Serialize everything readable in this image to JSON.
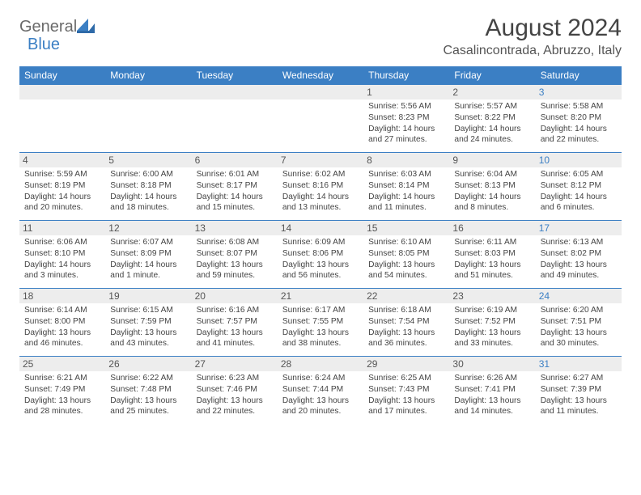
{
  "brand": {
    "left": "General",
    "right": "Blue"
  },
  "title": "August 2024",
  "location": "Casalincontrada, Abruzzo, Italy",
  "colors": {
    "header_bg": "#3b7fc4",
    "header_text": "#ffffff",
    "daynum_bg": "#ededed",
    "rule": "#3b7fc4",
    "body_text": "#444444",
    "saturday_num": "#3b7fc4"
  },
  "typography": {
    "title_fontsize": 30,
    "location_fontsize": 16,
    "header_fontsize": 12,
    "daynum_fontsize": 12,
    "cell_fontsize": 10.2
  },
  "day_headers": [
    "Sunday",
    "Monday",
    "Tuesday",
    "Wednesday",
    "Thursday",
    "Friday",
    "Saturday"
  ],
  "weeks": [
    [
      {
        "num": "",
        "lines": []
      },
      {
        "num": "",
        "lines": []
      },
      {
        "num": "",
        "lines": []
      },
      {
        "num": "",
        "lines": []
      },
      {
        "num": "1",
        "lines": [
          "Sunrise: 5:56 AM",
          "Sunset: 8:23 PM",
          "Daylight: 14 hours and 27 minutes."
        ]
      },
      {
        "num": "2",
        "lines": [
          "Sunrise: 5:57 AM",
          "Sunset: 8:22 PM",
          "Daylight: 14 hours and 24 minutes."
        ]
      },
      {
        "num": "3",
        "lines": [
          "Sunrise: 5:58 AM",
          "Sunset: 8:20 PM",
          "Daylight: 14 hours and 22 minutes."
        ]
      }
    ],
    [
      {
        "num": "4",
        "lines": [
          "Sunrise: 5:59 AM",
          "Sunset: 8:19 PM",
          "Daylight: 14 hours and 20 minutes."
        ]
      },
      {
        "num": "5",
        "lines": [
          "Sunrise: 6:00 AM",
          "Sunset: 8:18 PM",
          "Daylight: 14 hours and 18 minutes."
        ]
      },
      {
        "num": "6",
        "lines": [
          "Sunrise: 6:01 AM",
          "Sunset: 8:17 PM",
          "Daylight: 14 hours and 15 minutes."
        ]
      },
      {
        "num": "7",
        "lines": [
          "Sunrise: 6:02 AM",
          "Sunset: 8:16 PM",
          "Daylight: 14 hours and 13 minutes."
        ]
      },
      {
        "num": "8",
        "lines": [
          "Sunrise: 6:03 AM",
          "Sunset: 8:14 PM",
          "Daylight: 14 hours and 11 minutes."
        ]
      },
      {
        "num": "9",
        "lines": [
          "Sunrise: 6:04 AM",
          "Sunset: 8:13 PM",
          "Daylight: 14 hours and 8 minutes."
        ]
      },
      {
        "num": "10",
        "lines": [
          "Sunrise: 6:05 AM",
          "Sunset: 8:12 PM",
          "Daylight: 14 hours and 6 minutes."
        ]
      }
    ],
    [
      {
        "num": "11",
        "lines": [
          "Sunrise: 6:06 AM",
          "Sunset: 8:10 PM",
          "Daylight: 14 hours and 3 minutes."
        ]
      },
      {
        "num": "12",
        "lines": [
          "Sunrise: 6:07 AM",
          "Sunset: 8:09 PM",
          "Daylight: 14 hours and 1 minute."
        ]
      },
      {
        "num": "13",
        "lines": [
          "Sunrise: 6:08 AM",
          "Sunset: 8:07 PM",
          "Daylight: 13 hours and 59 minutes."
        ]
      },
      {
        "num": "14",
        "lines": [
          "Sunrise: 6:09 AM",
          "Sunset: 8:06 PM",
          "Daylight: 13 hours and 56 minutes."
        ]
      },
      {
        "num": "15",
        "lines": [
          "Sunrise: 6:10 AM",
          "Sunset: 8:05 PM",
          "Daylight: 13 hours and 54 minutes."
        ]
      },
      {
        "num": "16",
        "lines": [
          "Sunrise: 6:11 AM",
          "Sunset: 8:03 PM",
          "Daylight: 13 hours and 51 minutes."
        ]
      },
      {
        "num": "17",
        "lines": [
          "Sunrise: 6:13 AM",
          "Sunset: 8:02 PM",
          "Daylight: 13 hours and 49 minutes."
        ]
      }
    ],
    [
      {
        "num": "18",
        "lines": [
          "Sunrise: 6:14 AM",
          "Sunset: 8:00 PM",
          "Daylight: 13 hours and 46 minutes."
        ]
      },
      {
        "num": "19",
        "lines": [
          "Sunrise: 6:15 AM",
          "Sunset: 7:59 PM",
          "Daylight: 13 hours and 43 minutes."
        ]
      },
      {
        "num": "20",
        "lines": [
          "Sunrise: 6:16 AM",
          "Sunset: 7:57 PM",
          "Daylight: 13 hours and 41 minutes."
        ]
      },
      {
        "num": "21",
        "lines": [
          "Sunrise: 6:17 AM",
          "Sunset: 7:55 PM",
          "Daylight: 13 hours and 38 minutes."
        ]
      },
      {
        "num": "22",
        "lines": [
          "Sunrise: 6:18 AM",
          "Sunset: 7:54 PM",
          "Daylight: 13 hours and 36 minutes."
        ]
      },
      {
        "num": "23",
        "lines": [
          "Sunrise: 6:19 AM",
          "Sunset: 7:52 PM",
          "Daylight: 13 hours and 33 minutes."
        ]
      },
      {
        "num": "24",
        "lines": [
          "Sunrise: 6:20 AM",
          "Sunset: 7:51 PM",
          "Daylight: 13 hours and 30 minutes."
        ]
      }
    ],
    [
      {
        "num": "25",
        "lines": [
          "Sunrise: 6:21 AM",
          "Sunset: 7:49 PM",
          "Daylight: 13 hours and 28 minutes."
        ]
      },
      {
        "num": "26",
        "lines": [
          "Sunrise: 6:22 AM",
          "Sunset: 7:48 PM",
          "Daylight: 13 hours and 25 minutes."
        ]
      },
      {
        "num": "27",
        "lines": [
          "Sunrise: 6:23 AM",
          "Sunset: 7:46 PM",
          "Daylight: 13 hours and 22 minutes."
        ]
      },
      {
        "num": "28",
        "lines": [
          "Sunrise: 6:24 AM",
          "Sunset: 7:44 PM",
          "Daylight: 13 hours and 20 minutes."
        ]
      },
      {
        "num": "29",
        "lines": [
          "Sunrise: 6:25 AM",
          "Sunset: 7:43 PM",
          "Daylight: 13 hours and 17 minutes."
        ]
      },
      {
        "num": "30",
        "lines": [
          "Sunrise: 6:26 AM",
          "Sunset: 7:41 PM",
          "Daylight: 13 hours and 14 minutes."
        ]
      },
      {
        "num": "31",
        "lines": [
          "Sunrise: 6:27 AM",
          "Sunset: 7:39 PM",
          "Daylight: 13 hours and 11 minutes."
        ]
      }
    ]
  ]
}
